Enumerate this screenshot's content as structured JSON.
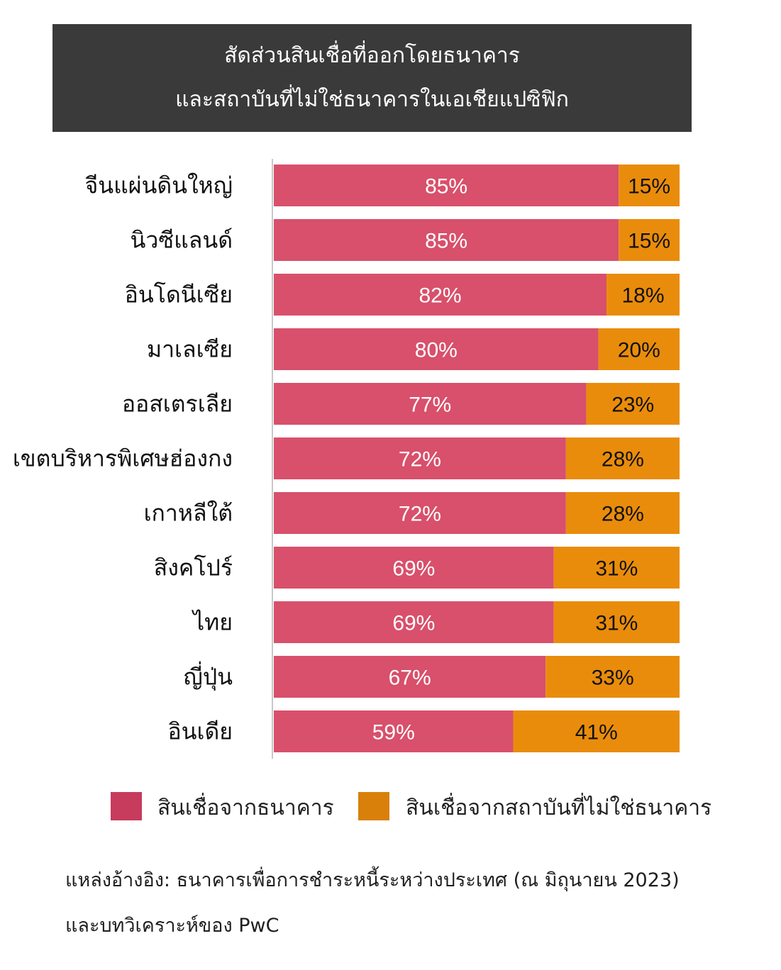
{
  "title": {
    "line1": "สัดส่วนสินเชื่อที่ออกโดยธนาคาร",
    "line2": "และสถาบันที่ไม่ใช่ธนาคารในเอเชียแปซิฟิก"
  },
  "colors": {
    "bank": "#d8506b",
    "nonbank": "#e98c0b",
    "legend_bank": "#c73b5d",
    "legend_nonbank": "#d9800b",
    "title_bg": "#3a3a3a"
  },
  "chart_data": {
    "type": "bar",
    "orientation": "horizontal",
    "stacked": true,
    "categories": [
      "จีนแผ่นดินใหญ่",
      "นิวซีแลนด์",
      "อินโดนีเซีย",
      "มาเลเซีย",
      "ออสเตรเลีย",
      "เขตบริหารพิเศษฮ่องกง",
      "เกาหลีใต้",
      "สิงคโปร์",
      "ไทย",
      "ญี่ปุ่น",
      "อินเดีย"
    ],
    "series": [
      {
        "name": "สินเชื่อจากธนาคาร",
        "values": [
          85,
          85,
          82,
          80,
          77,
          72,
          72,
          69,
          69,
          67,
          59
        ]
      },
      {
        "name": "สินเชื่อจากสถาบันที่ไม่ใช่ธนาคาร",
        "values": [
          15,
          15,
          18,
          20,
          23,
          28,
          28,
          31,
          31,
          33,
          41
        ]
      }
    ],
    "value_labels": [
      [
        "85%",
        "85%",
        "82%",
        "80%",
        "77%",
        "72%",
        "72%",
        "69%",
        "69%",
        "67%",
        "59%"
      ],
      [
        "15%",
        "15%",
        "18%",
        "20%",
        "23%",
        "28%",
        "28%",
        "31%",
        "31%",
        "33%",
        "41%"
      ]
    ],
    "xlim": [
      0,
      100
    ],
    "legend_position": "bottom"
  },
  "legend": {
    "bank_label": "สินเชื่อจากธนาคาร",
    "nonbank_label": "สินเชื่อจากสถาบันที่ไม่ใช่ธนาคาร"
  },
  "source": {
    "line1": "แหล่งอ้างอิง: ธนาคารเพื่อการชำระหนี้ระหว่างประเทศ (ณ มิถุนายน 2023)",
    "line2": "และบทวิเคราะห์ของ PwC"
  }
}
